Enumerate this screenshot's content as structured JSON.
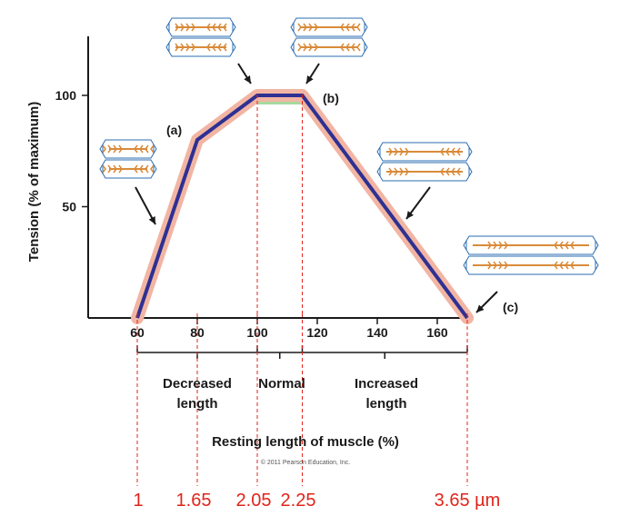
{
  "chart_data": {
    "type": "line",
    "title": "",
    "ylabel": "Tension (% of maximum)",
    "xlabel": "Resting length of muscle (%)",
    "xlim": [
      50,
      175
    ],
    "ylim": [
      0,
      125
    ],
    "x_ticks": [
      "60",
      "80",
      "100",
      "120",
      "140",
      "160"
    ],
    "y_ticks": [
      "50",
      "100"
    ],
    "series": [
      {
        "x": [
          60,
          80,
          100,
          115,
          170
        ],
        "y": [
          0,
          80,
          100,
          100,
          0
        ],
        "color": "#2e3192",
        "halo_color": "#f2b5a3"
      }
    ],
    "plateau_color": "#a6d8a0",
    "point_labels": [
      "(a)",
      "(b)",
      "(c)"
    ],
    "ranges": [
      {
        "label_line1": "Decreased",
        "label_line2": "length",
        "from": 60,
        "to": 100
      },
      {
        "label_line1": "Normal",
        "label_line2": "",
        "from": 100,
        "to": 115
      },
      {
        "label_line1": "Increased",
        "label_line2": "length",
        "from": 115,
        "to": 170
      }
    ],
    "micrometer_markers": [
      {
        "x": 60,
        "label": "1"
      },
      {
        "x": 80,
        "label": "1.65"
      },
      {
        "x": 100,
        "label": "2.05"
      },
      {
        "x": 115,
        "label": "2.25"
      },
      {
        "x": 170,
        "label": "3.65 µm"
      }
    ],
    "marker_color": "#e0241b",
    "sarcomere_color": "#d98b3a",
    "sarcomere_outline_color": "#2b6cb0"
  },
  "copyright": "© 2011 Pearson Education, Inc."
}
